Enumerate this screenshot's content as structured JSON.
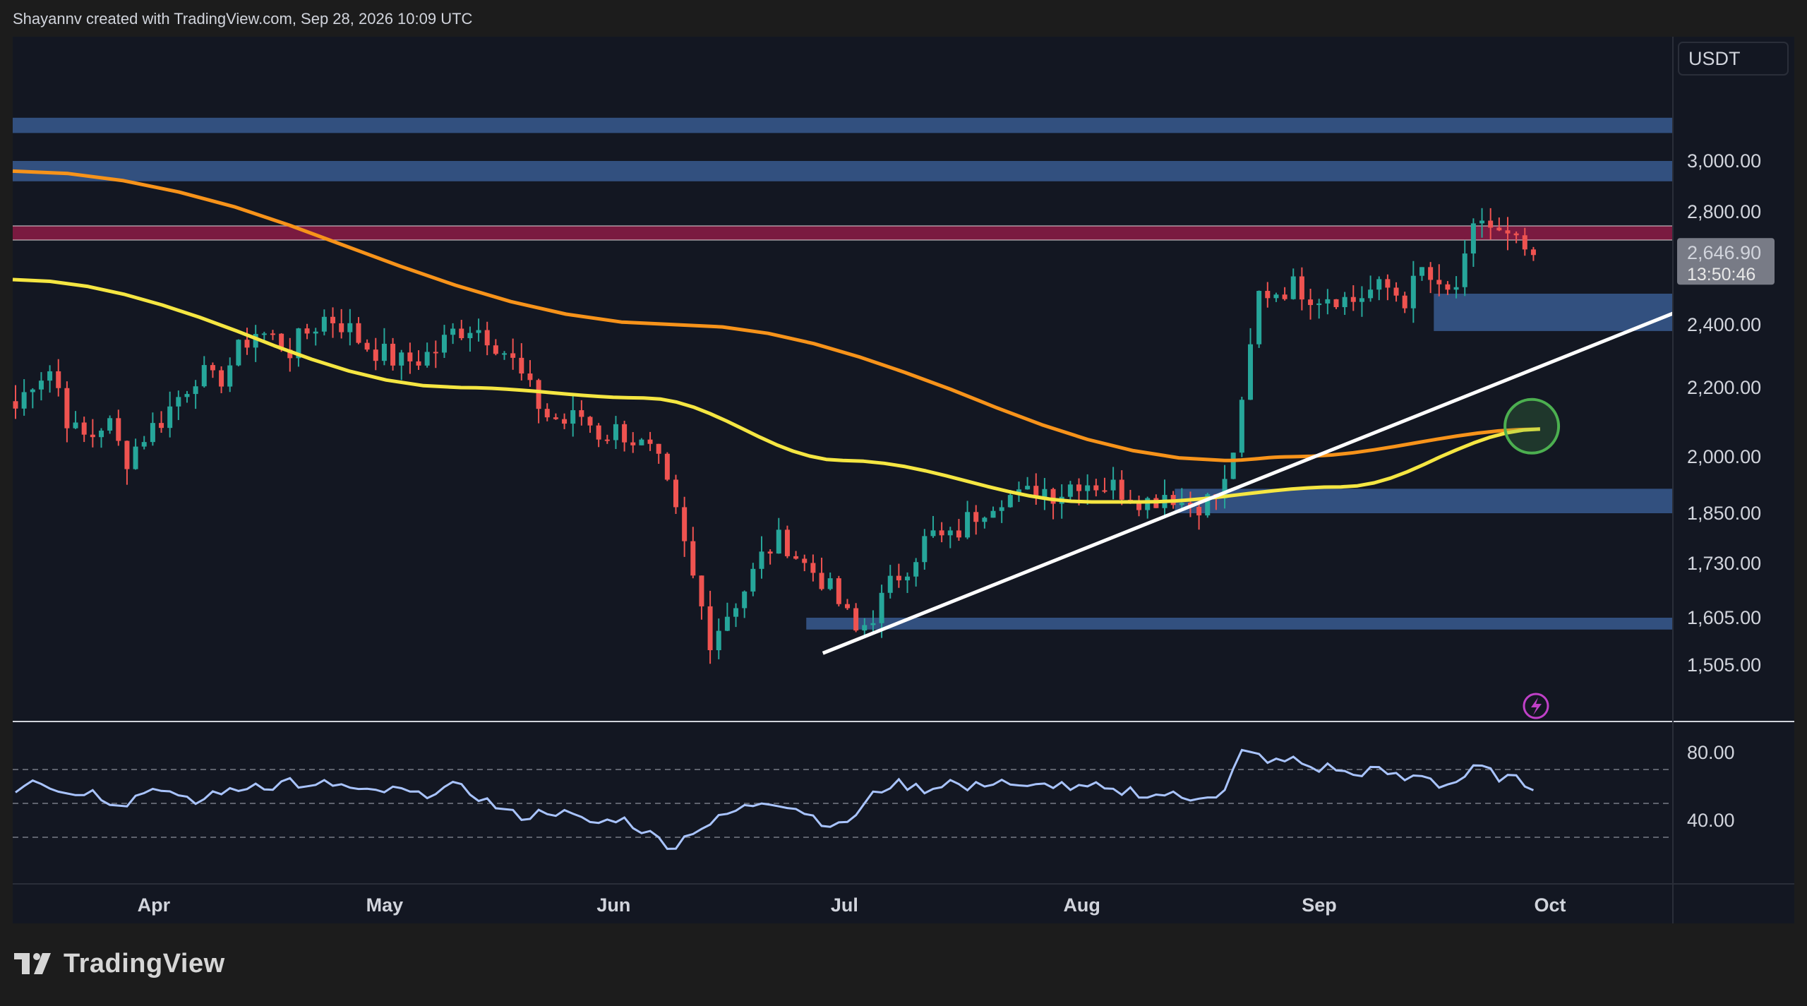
{
  "header": {
    "attribution": "Shayannv created with TradingView.com, Sep 28, 2026 10:09 UTC"
  },
  "logo": {
    "text": "TradingView",
    "icon": "tradingview-logo-icon"
  },
  "price_axis": {
    "currency": "USDT",
    "ticks": [
      "3,000.00",
      "2,800.00",
      "2,400.00",
      "2,200.00",
      "2,000.00",
      "1,850.00",
      "1,730.00",
      "1,605.00",
      "1,505.00"
    ],
    "last_price": "2,646.90",
    "countdown": "13:50:46"
  },
  "rsi_axis": {
    "ticks": [
      "80.00",
      "40.00"
    ]
  },
  "time_axis": {
    "months": [
      "Apr",
      "May",
      "Jun",
      "Jul",
      "Aug",
      "Sep",
      "Oct"
    ]
  },
  "chart_data": {
    "type": "candlestick",
    "instrument_quote": "USDT",
    "y_ticks": [
      3000,
      2800,
      2400,
      2200,
      2000,
      1850,
      1730,
      1605,
      1505
    ],
    "x_labels": [
      "Apr",
      "May",
      "Jun",
      "Jul",
      "Aug",
      "Sep",
      "Oct"
    ],
    "last_price": 2646.9,
    "close_path": [
      2140,
      2230,
      2260,
      2080,
      2050,
      2110,
      1990,
      2060,
      2110,
      2180,
      2250,
      2210,
      2300,
      2380,
      2360,
      2320,
      2380,
      2430,
      2400,
      2340,
      2310,
      2280,
      2290,
      2320,
      2380,
      2400,
      2360,
      2300,
      2200,
      2120,
      2100,
      2120,
      2060,
      2080,
      2040,
      2000,
      1860,
      1700,
      1560,
      1620,
      1680,
      1760,
      1790,
      1730,
      1700,
      1640,
      1570,
      1620,
      1690,
      1740,
      1800,
      1780,
      1830,
      1870,
      1900,
      1890,
      1920,
      1900,
      1940,
      1930,
      1920,
      1900,
      1880,
      1910,
      1870,
      1880,
      1900,
      2110,
      2510,
      2520,
      2540,
      2500,
      2510,
      2480,
      2520,
      2530,
      2490,
      2600,
      2490,
      2550,
      2790,
      2720,
      2680,
      2646.9
    ],
    "ema_200_orange": [
      [
        0,
        2960
      ],
      [
        0.4,
        2400
      ],
      [
        0.73,
        1990
      ],
      [
        0.77,
        2000
      ],
      [
        0.92,
        2080
      ]
    ],
    "ema_100_yellow": [
      [
        0,
        2560
      ],
      [
        0.27,
        2200
      ],
      [
        0.38,
        2170
      ],
      [
        0.5,
        1990
      ],
      [
        0.65,
        1880
      ],
      [
        0.68,
        1880
      ],
      [
        0.8,
        1920
      ],
      [
        0.92,
        2080
      ]
    ],
    "trendline": [
      [
        0.488,
        1530
      ],
      [
        1,
        2440
      ]
    ],
    "zones": [
      {
        "kind": "supply",
        "color": "#32507f",
        "top": 3170,
        "bottom": 3110
      },
      {
        "kind": "supply",
        "color": "#32507f",
        "top": 3000,
        "bottom": 2920
      },
      {
        "kind": "resistance",
        "color": "#7a1a40",
        "top": 2750,
        "bottom": 2700
      },
      {
        "kind": "demand",
        "color": "#32507f",
        "top": 2510,
        "bottom": 2380
      },
      {
        "kind": "demand",
        "color": "#32507f",
        "top": 1915,
        "bottom": 1850
      },
      {
        "kind": "demand",
        "color": "#32507f",
        "top": 1605,
        "bottom": 1580
      }
    ],
    "highlight_circle": {
      "color": "#4caf50",
      "near_price": 2080
    },
    "rsi": {
      "ticks": [
        80,
        40
      ],
      "levels_dashed": [
        70,
        50,
        30
      ],
      "values": [
        58,
        66,
        60,
        55,
        58,
        52,
        50,
        57,
        60,
        52,
        50,
        58,
        56,
        62,
        60,
        64,
        58,
        62,
        60,
        56,
        57,
        58,
        54,
        58,
        60,
        56,
        50,
        44,
        42,
        46,
        44,
        40,
        38,
        42,
        36,
        30,
        24,
        34,
        38,
        44,
        48,
        52,
        50,
        46,
        40,
        36,
        44,
        56,
        62,
        60,
        58,
        64,
        58,
        62,
        64,
        58,
        60,
        62,
        58,
        60,
        56,
        58,
        54,
        56,
        52,
        56,
        54,
        80,
        78,
        74,
        76,
        70,
        72,
        66,
        70,
        68,
        64,
        68,
        60,
        64,
        72,
        66,
        64,
        60
      ]
    },
    "colors": {
      "up": "#26a69a",
      "down": "#ef5350",
      "ema200": "#f7931a",
      "ema100": "#f5e642",
      "trend": "#ffffff",
      "rsi": "#a9c4ff",
      "bg": "#131722"
    }
  }
}
